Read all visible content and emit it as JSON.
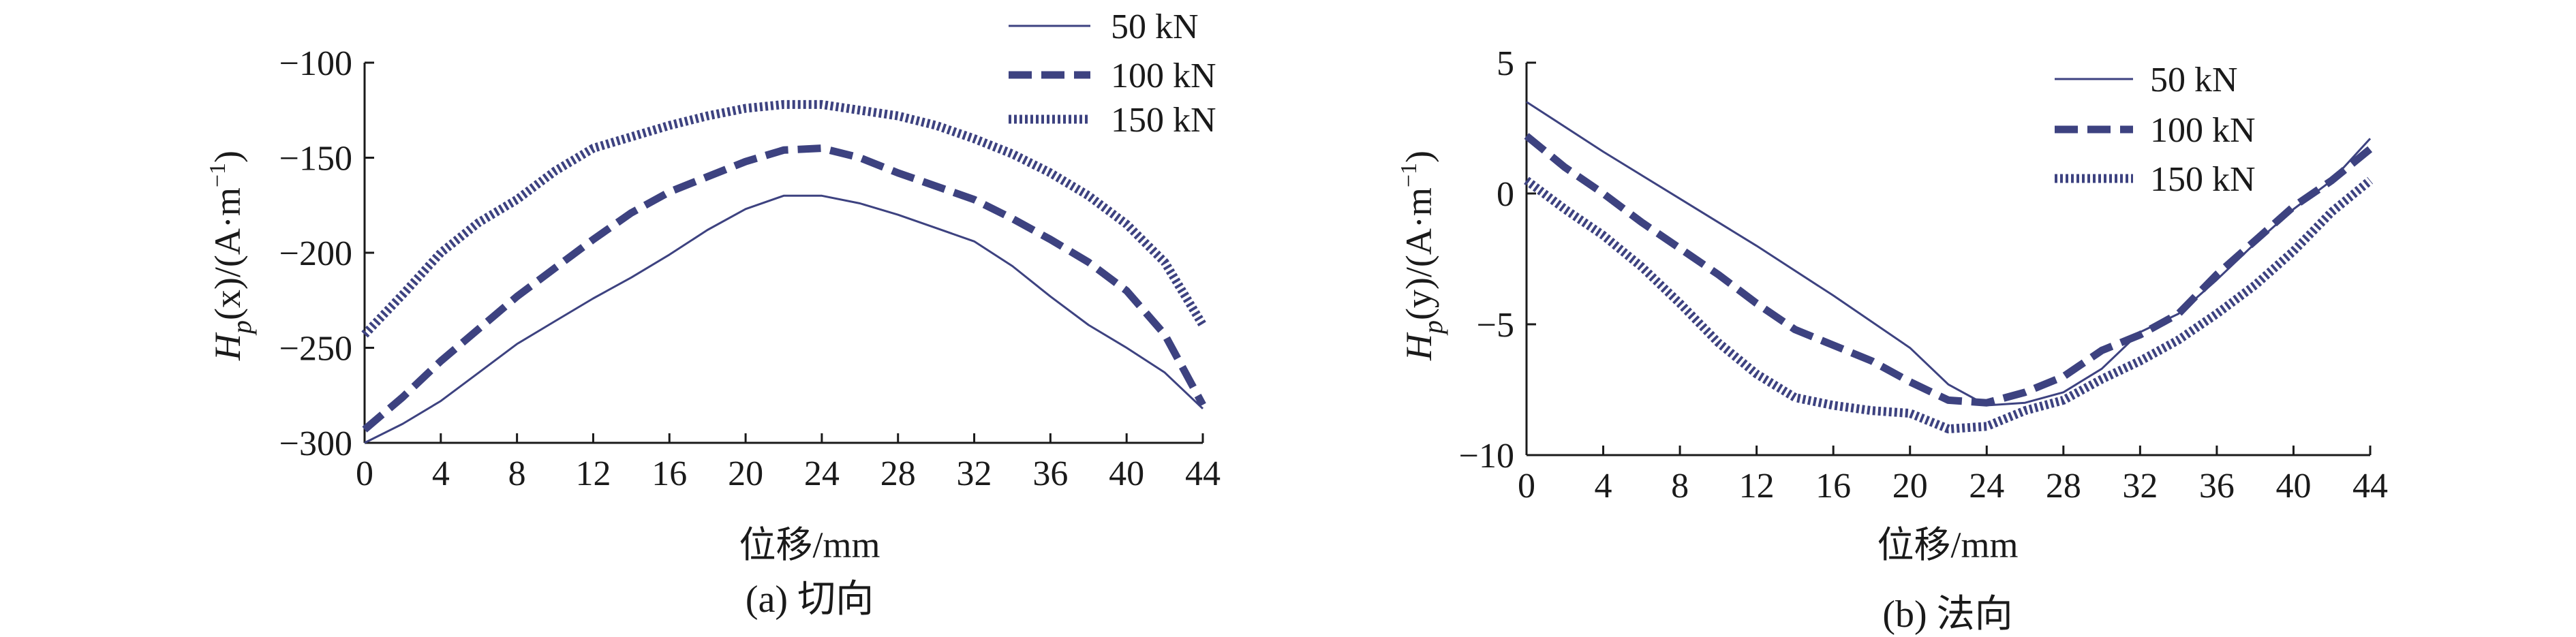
{
  "chart_data": [
    {
      "type": "line",
      "panel": "a",
      "caption": "(a) 切向",
      "xlabel": "位移/mm",
      "ylabel": {
        "prefix": "H",
        "sub": "p",
        "mid": "(x)/(A·m",
        "sup": "−1",
        "suffix": ")"
      },
      "xlim": [
        0,
        44
      ],
      "ylim": [
        -300,
        -100
      ],
      "xticks": [
        0,
        4,
        8,
        12,
        16,
        20,
        24,
        28,
        32,
        36,
        40,
        44
      ],
      "yticks": [
        -300,
        -250,
        -200,
        -150,
        -100
      ],
      "xtick_labels": [
        "0",
        "4",
        "8",
        "12",
        "16",
        "20",
        "24",
        "28",
        "32",
        "36",
        "40",
        "44"
      ],
      "ytick_labels": [
        "−300",
        "−250",
        "−200",
        "−150",
        "−100"
      ],
      "legend": {
        "position": "top-right",
        "entries": [
          "50 kN",
          "100 kN",
          "150 kN"
        ]
      },
      "series": [
        {
          "name": "50 kN",
          "style": "solid",
          "x": [
            0,
            2,
            4,
            6,
            8,
            10,
            12,
            14,
            16,
            18,
            20,
            22,
            24,
            26,
            28,
            30,
            32,
            34,
            36,
            38,
            40,
            42,
            44
          ],
          "y": [
            -300,
            -290,
            -278,
            -263,
            -248,
            -236,
            -224,
            -213,
            -201,
            -188,
            -177,
            -170,
            -170,
            -174,
            -180,
            -187,
            -194,
            -207,
            -223,
            -238,
            -250,
            -263,
            -282
          ]
        },
        {
          "name": "100 kN",
          "style": "dashed",
          "x": [
            0,
            2,
            4,
            6,
            8,
            10,
            12,
            14,
            16,
            18,
            20,
            22,
            24,
            26,
            28,
            30,
            32,
            34,
            36,
            38,
            40,
            42,
            44
          ],
          "y": [
            -293,
            -276,
            -257,
            -240,
            -223,
            -208,
            -193,
            -179,
            -168,
            -160,
            -152,
            -146,
            -145,
            -150,
            -158,
            -165,
            -172,
            -182,
            -193,
            -205,
            -220,
            -243,
            -280
          ]
        },
        {
          "name": "150 kN",
          "style": "dotted",
          "x": [
            0,
            2,
            4,
            6,
            8,
            10,
            12,
            14,
            16,
            18,
            20,
            22,
            24,
            26,
            28,
            30,
            32,
            34,
            36,
            38,
            40,
            42,
            44
          ],
          "y": [
            -243,
            -222,
            -200,
            -184,
            -172,
            -157,
            -145,
            -139,
            -133,
            -128,
            -124,
            -122,
            -122,
            -125,
            -128,
            -133,
            -140,
            -148,
            -158,
            -170,
            -185,
            -205,
            -238
          ]
        }
      ]
    },
    {
      "type": "line",
      "panel": "b",
      "caption": "(b) 法向",
      "xlabel": "位移/mm",
      "ylabel": {
        "prefix": "H",
        "sub": "p",
        "mid": "(y)/(A·m",
        "sup": "−1",
        "suffix": ")"
      },
      "xlim": [
        0,
        44
      ],
      "ylim": [
        -10,
        5
      ],
      "xticks": [
        0,
        4,
        8,
        12,
        16,
        20,
        24,
        28,
        32,
        36,
        40,
        44
      ],
      "yticks": [
        -10,
        -5,
        0,
        5
      ],
      "xtick_labels": [
        "0",
        "4",
        "8",
        "12",
        "16",
        "20",
        "24",
        "28",
        "32",
        "36",
        "40",
        "44"
      ],
      "ytick_labels": [
        "−10",
        "−5",
        "0",
        "5"
      ],
      "legend": {
        "position": "top-right",
        "entries": [
          "50 kN",
          "100 kN",
          "150 kN"
        ]
      },
      "series": [
        {
          "name": "50 kN",
          "style": "solid",
          "x": [
            0,
            4,
            8,
            12,
            16,
            20,
            22,
            24,
            26,
            28,
            30,
            32,
            34,
            36,
            38,
            40,
            42,
            44
          ],
          "y": [
            3.5,
            1.6,
            -0.2,
            -2.0,
            -3.9,
            -5.9,
            -7.3,
            -8.1,
            -8.0,
            -7.6,
            -6.7,
            -5.3,
            -4.6,
            -3.3,
            -1.9,
            -0.6,
            0.5,
            2.1
          ]
        },
        {
          "name": "100 kN",
          "style": "dashed",
          "x": [
            0,
            2,
            4,
            6,
            8,
            10,
            12,
            14,
            16,
            18,
            20,
            22,
            24,
            26,
            28,
            30,
            32,
            34,
            36,
            38,
            40,
            42,
            44
          ],
          "y": [
            2.2,
            1.0,
            0.0,
            -1.1,
            -2.1,
            -3.1,
            -4.2,
            -5.2,
            -5.8,
            -6.4,
            -7.2,
            -7.9,
            -8.0,
            -7.6,
            -7.0,
            -6.0,
            -5.4,
            -4.6,
            -3.1,
            -1.8,
            -0.5,
            0.5,
            1.7
          ]
        },
        {
          "name": "150 kN",
          "style": "dotted",
          "x": [
            0,
            2,
            4,
            6,
            8,
            10,
            12,
            14,
            16,
            18,
            20,
            22,
            24,
            26,
            28,
            30,
            32,
            34,
            36,
            38,
            40,
            42,
            44
          ],
          "y": [
            0.5,
            -0.6,
            -1.6,
            -2.8,
            -4.2,
            -5.7,
            -6.9,
            -7.8,
            -8.1,
            -8.3,
            -8.4,
            -9.0,
            -8.9,
            -8.3,
            -7.9,
            -7.1,
            -6.4,
            -5.6,
            -4.6,
            -3.5,
            -2.2,
            -0.7,
            0.5
          ]
        }
      ]
    }
  ]
}
